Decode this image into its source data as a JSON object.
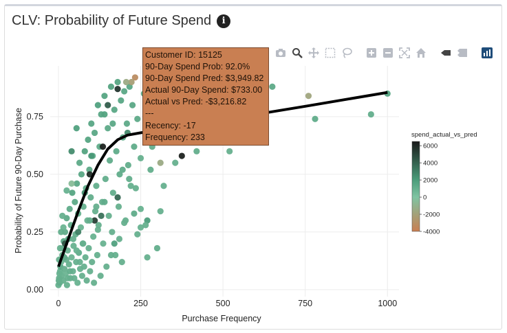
{
  "card": {
    "title": "CLV: Probability of Future Spend",
    "info_icon": "info-circle-icon"
  },
  "modebar": {
    "buttons": [
      "camera-icon",
      "zoom-icon",
      "pan-icon",
      "box-select-icon",
      "lasso-icon",
      "zoom-in-icon",
      "zoom-out-icon",
      "autoscale-icon",
      "home-icon",
      "hover-closest-icon",
      "hover-compare-icon",
      "plotly-logo-icon"
    ]
  },
  "tooltip": {
    "lines": [
      "Customer ID: 15125",
      "90-Day Spend Prob: 92.0%",
      "90-Day Spend Pred: $3,949.82",
      "Actual 90-Day Spend: $733.00",
      "Actual vs Pred: -$3,216.82",
      "---",
      "Recency: -17",
      "Frequency: 233"
    ]
  },
  "chart_data": {
    "type": "scatter",
    "title": "",
    "xlabel": "Purchase Frequency",
    "ylabel": "Probability of Future 90-Day Purchase",
    "xlim": [
      -25,
      1035
    ],
    "ylim": [
      -0.03,
      0.97
    ],
    "xticks": [
      0,
      250,
      500,
      750,
      1000
    ],
    "xtick_labels": [
      "0",
      "250",
      "500",
      "750",
      "1000"
    ],
    "yticks": [
      0,
      0.25,
      0.5,
      0.75
    ],
    "ytick_labels": [
      "0.00",
      "0.25",
      "0.50",
      "0.75"
    ],
    "grid": true,
    "colorbar": {
      "title": "spend_actual_vs_pred",
      "range": [
        -4000,
        6500
      ],
      "ticks": [
        6000,
        4000,
        2000,
        0,
        -2000,
        -4000
      ],
      "tick_labels": [
        "6000",
        "4000",
        "2000",
        "0",
        "-2000",
        "-4000"
      ],
      "colors": [
        "#c97f52",
        "#7fc4a2",
        "#4a9b79",
        "#1a1a1a"
      ]
    },
    "trend": {
      "name": "smooth",
      "x": [
        0,
        30,
        60,
        90,
        120,
        150,
        180,
        210,
        250,
        300,
        400,
        500,
        600,
        750,
        1000
      ],
      "y": [
        0.1,
        0.22,
        0.34,
        0.45,
        0.54,
        0.61,
        0.65,
        0.67,
        0.68,
        0.69,
        0.71,
        0.735,
        0.76,
        0.795,
        0.855
      ]
    },
    "points": [
      [
        0,
        0.02,
        1000
      ],
      [
        2,
        0.05,
        1000
      ],
      [
        4,
        0.03,
        1200
      ],
      [
        5,
        0.08,
        900
      ],
      [
        6,
        0.1,
        1500
      ],
      [
        8,
        0.12,
        800
      ],
      [
        10,
        0.06,
        1000
      ],
      [
        12,
        0.15,
        1100
      ],
      [
        14,
        0.18,
        900
      ],
      [
        15,
        0.04,
        1000
      ],
      [
        16,
        0.21,
        1400
      ],
      [
        18,
        0.09,
        1000
      ],
      [
        20,
        0.25,
        1200
      ],
      [
        22,
        0.07,
        800
      ],
      [
        24,
        0.13,
        1000
      ],
      [
        25,
        0.31,
        1300
      ],
      [
        26,
        0.02,
        1000
      ],
      [
        28,
        0.17,
        900
      ],
      [
        30,
        0.22,
        1500
      ],
      [
        32,
        0.11,
        1000
      ],
      [
        34,
        0.35,
        1200
      ],
      [
        36,
        0.05,
        1000
      ],
      [
        38,
        0.28,
        1100
      ],
      [
        40,
        0.14,
        800
      ],
      [
        42,
        0.42,
        1600
      ],
      [
        44,
        0.08,
        1000
      ],
      [
        46,
        0.19,
        900
      ],
      [
        48,
        0.05,
        1000
      ],
      [
        50,
        0.38,
        1300
      ],
      [
        52,
        0.24,
        1100
      ],
      [
        54,
        0.12,
        1000
      ],
      [
        56,
        0.46,
        1400
      ],
      [
        58,
        0.03,
        900
      ],
      [
        60,
        0.33,
        1000
      ],
      [
        62,
        0.16,
        1200
      ],
      [
        64,
        0.55,
        1300
      ],
      [
        66,
        0.09,
        1000
      ],
      [
        68,
        0.27,
        800
      ],
      [
        70,
        0.5,
        1500
      ],
      [
        72,
        0.06,
        1000
      ],
      [
        74,
        0.2,
        1100
      ],
      [
        76,
        0.36,
        900
      ],
      [
        78,
        0.1,
        1000
      ],
      [
        80,
        0.6,
        1700
      ],
      [
        82,
        0.14,
        1000
      ],
      [
        84,
        0.44,
        1200
      ],
      [
        86,
        0.04,
        1000
      ],
      [
        88,
        0.3,
        900
      ],
      [
        90,
        0.65,
        1600
      ],
      [
        92,
        0.18,
        1000
      ],
      [
        94,
        0.52,
        1300
      ],
      [
        96,
        0.08,
        1000
      ],
      [
        98,
        0.4,
        1100
      ],
      [
        100,
        0.72,
        1500
      ],
      [
        102,
        0.12,
        1000
      ],
      [
        104,
        0.58,
        1200
      ],
      [
        106,
        0.23,
        900
      ],
      [
        108,
        0.03,
        1000
      ],
      [
        110,
        0.68,
        1400
      ],
      [
        112,
        0.34,
        1000
      ],
      [
        115,
        0.45,
        1100
      ],
      [
        118,
        0.15,
        1000
      ],
      [
        120,
        0.8,
        1800
      ],
      [
        122,
        0.28,
        1000
      ],
      [
        125,
        0.62,
        1200
      ],
      [
        128,
        0.06,
        1000
      ],
      [
        130,
        0.76,
        1500
      ],
      [
        133,
        0.38,
        1000
      ],
      [
        136,
        0.2,
        900
      ],
      [
        140,
        0.84,
        1600
      ],
      [
        143,
        0.48,
        1100
      ],
      [
        146,
        0.1,
        1000
      ],
      [
        150,
        0.7,
        1300
      ],
      [
        153,
        0.32,
        1000
      ],
      [
        156,
        0.56,
        1200
      ],
      [
        160,
        0.88,
        1700
      ],
      [
        163,
        0.25,
        1000
      ],
      [
        166,
        0.42,
        1100
      ],
      [
        170,
        0.78,
        1400
      ],
      [
        173,
        0.15,
        1000
      ],
      [
        176,
        0.6,
        1200
      ],
      [
        180,
        0.9,
        1600
      ],
      [
        183,
        0.36,
        1000
      ],
      [
        186,
        0.5,
        1200
      ],
      [
        190,
        0.82,
        1500
      ],
      [
        193,
        0.12,
        1000
      ],
      [
        196,
        0.66,
        1300
      ],
      [
        200,
        0.86,
        1400
      ],
      [
        204,
        0.3,
        1000
      ],
      [
        208,
        0.72,
        1300
      ],
      [
        212,
        0.54,
        1100
      ],
      [
        216,
        0.88,
        1500
      ],
      [
        220,
        0.45,
        1000
      ],
      [
        225,
        0.8,
        1400
      ],
      [
        230,
        0.62,
        1200
      ],
      [
        240,
        0.74,
        1300
      ],
      [
        250,
        0.57,
        1000
      ],
      [
        260,
        0.85,
        1500
      ],
      [
        270,
        0.78,
        1300
      ],
      [
        285,
        0.62,
        1100
      ],
      [
        300,
        0.72,
        1200
      ],
      [
        320,
        0.45,
        1000
      ],
      [
        340,
        0.64,
        1100
      ],
      [
        355,
        0.55,
        1000
      ],
      [
        380,
        0.84,
        1300
      ],
      [
        400,
        0.77,
        1200
      ],
      [
        420,
        0.6,
        1100
      ],
      [
        440,
        0.72,
        1200
      ],
      [
        470,
        0.8,
        1300
      ],
      [
        520,
        0.6,
        1000
      ],
      [
        560,
        0.86,
        1100
      ],
      [
        600,
        0.75,
        1200
      ],
      [
        650,
        0.88,
        1300
      ],
      [
        760,
        0.84,
        -1800
      ],
      [
        780,
        0.74,
        1200
      ],
      [
        950,
        0.76,
        1100
      ],
      [
        1000,
        0.85,
        1600
      ],
      [
        233,
        0.92,
        -3216.82
      ],
      [
        222,
        0.9,
        -2200
      ],
      [
        206,
        0.9,
        -1500
      ],
      [
        180,
        0.87,
        5500
      ],
      [
        150,
        0.8,
        4200
      ],
      [
        135,
        0.62,
        6200
      ],
      [
        95,
        0.5,
        5800
      ],
      [
        180,
        0.4,
        3800
      ],
      [
        310,
        0.55,
        -1500
      ],
      [
        375,
        0.58,
        6200
      ],
      [
        360,
        0.88,
        5000
      ],
      [
        110,
        0.3,
        5200
      ],
      [
        60,
        0.25,
        3000
      ],
      [
        80,
        0.42,
        2500
      ],
      [
        210,
        0.68,
        2700
      ],
      [
        270,
        0.3,
        2000
      ],
      [
        170,
        0.2,
        1800
      ],
      [
        130,
        0.32,
        3500
      ],
      [
        100,
        0.58,
        2200
      ],
      [
        40,
        0.6,
        2600
      ],
      [
        55,
        0.7,
        1800
      ],
      [
        20,
        0.2,
        4500
      ],
      [
        310,
        0.34,
        1000
      ],
      [
        40,
        0.46,
        -500
      ],
      [
        25,
        0.43,
        900
      ],
      [
        15,
        0.27,
        800
      ],
      [
        120,
        0.26,
        1000
      ],
      [
        160,
        0.15,
        1100
      ],
      [
        185,
        0.22,
        1000
      ],
      [
        200,
        0.29,
        1000
      ],
      [
        230,
        0.33,
        1200
      ],
      [
        240,
        0.24,
        1000
      ],
      [
        250,
        0.27,
        900
      ],
      [
        270,
        0.14,
        1000
      ],
      [
        300,
        0.18,
        1100
      ],
      [
        140,
        0.38,
        1200
      ],
      [
        115,
        0.36,
        1000
      ],
      [
        95,
        0.3,
        1100
      ],
      [
        75,
        0.2,
        1000
      ],
      [
        65,
        0.12,
        1000
      ],
      [
        55,
        0.17,
        900
      ],
      [
        45,
        0.22,
        1000
      ],
      [
        35,
        0.08,
        1100
      ],
      [
        28,
        0.05,
        1000
      ],
      [
        18,
        0.14,
        1200
      ],
      [
        12,
        0.32,
        1000
      ],
      [
        8,
        0.25,
        1100
      ],
      [
        5,
        0.18,
        1000
      ],
      [
        3,
        0.07,
        900
      ],
      [
        2,
        0.13,
        1000
      ],
      [
        1,
        0.04,
        1000
      ],
      [
        140,
        0.76,
        1700
      ],
      [
        165,
        0.72,
        1400
      ],
      [
        195,
        0.52,
        1200
      ],
      [
        215,
        0.48,
        1100
      ],
      [
        235,
        0.44,
        1000
      ],
      [
        250,
        0.35,
        900
      ],
      [
        265,
        0.28,
        1000
      ],
      [
        280,
        0.52,
        1100
      ]
    ]
  }
}
